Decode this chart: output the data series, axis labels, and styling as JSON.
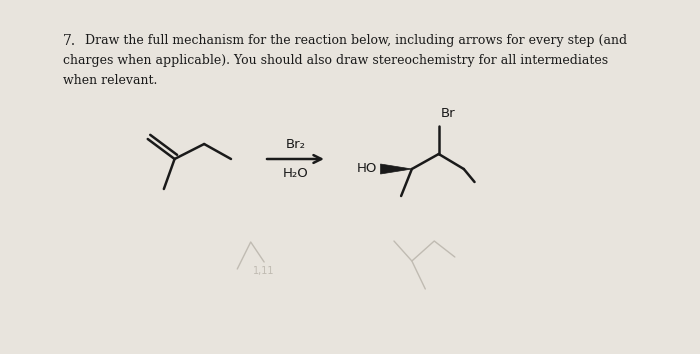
{
  "background_color": "#e8e4dd",
  "title_number": "7.",
  "question_text_line1": "Draw the full mechanism for the reaction below, including arrows for every step (and",
  "question_text_line2": "charges when applicable). You should also draw stereochemistry for all intermediates",
  "question_text_line3": "when relevant.",
  "reagent_above": "Br₂",
  "reagent_below": "H₂O",
  "text_color": "#1a1a1a",
  "arrow_color": "#1a1a1a",
  "bond_color": "#1a1a1a",
  "fig_width": 7.0,
  "fig_height": 3.54,
  "font_size_text": 9.0,
  "font_size_reagent": 9.5
}
